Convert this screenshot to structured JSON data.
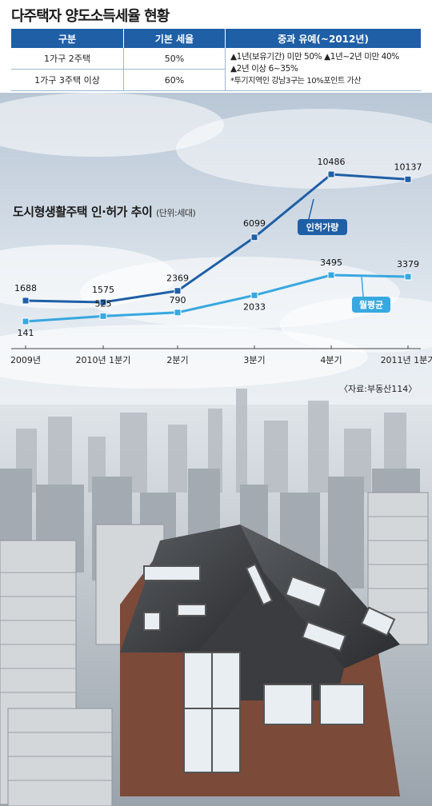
{
  "tax_table": {
    "title": "다주택자 양도소득세율 현황",
    "headers": [
      "구분",
      "기본 세율",
      "중과 유예(~2012년)"
    ],
    "rows": [
      {
        "category": "1가구 2주택",
        "rate": "50%"
      },
      {
        "category": "1가구 3주택 이상",
        "rate": "60%"
      }
    ],
    "notes": [
      "▲1년(보유기간) 미만 50% ▲1년~2년 미만 40%",
      "▲2년 이상 6~35%",
      "*투기지역인 강남3구는 10%포인트 가산"
    ]
  },
  "chart_data": {
    "type": "line",
    "title": "도시형생활주택 인·허가 추이",
    "unit": "(단위:세대)",
    "categories": [
      "2009년",
      "2010년 1분기",
      "2분기",
      "3분기",
      "4분기",
      "2011년 1분기"
    ],
    "series": [
      {
        "name": "인허가량",
        "values": [
          1688,
          1575,
          2369,
          6099,
          10486,
          10137
        ],
        "color": "#1f5fa6"
      },
      {
        "name": "월평균",
        "values": [
          141,
          525,
          790,
          2033,
          3495,
          3379
        ],
        "color": "#38a8e0"
      }
    ],
    "source": "〈자료:부동산114〉"
  },
  "colors": {
    "dark_line": "#1f5fa6",
    "light_line": "#38a8e0",
    "header_bg": "#1f5fa6"
  }
}
